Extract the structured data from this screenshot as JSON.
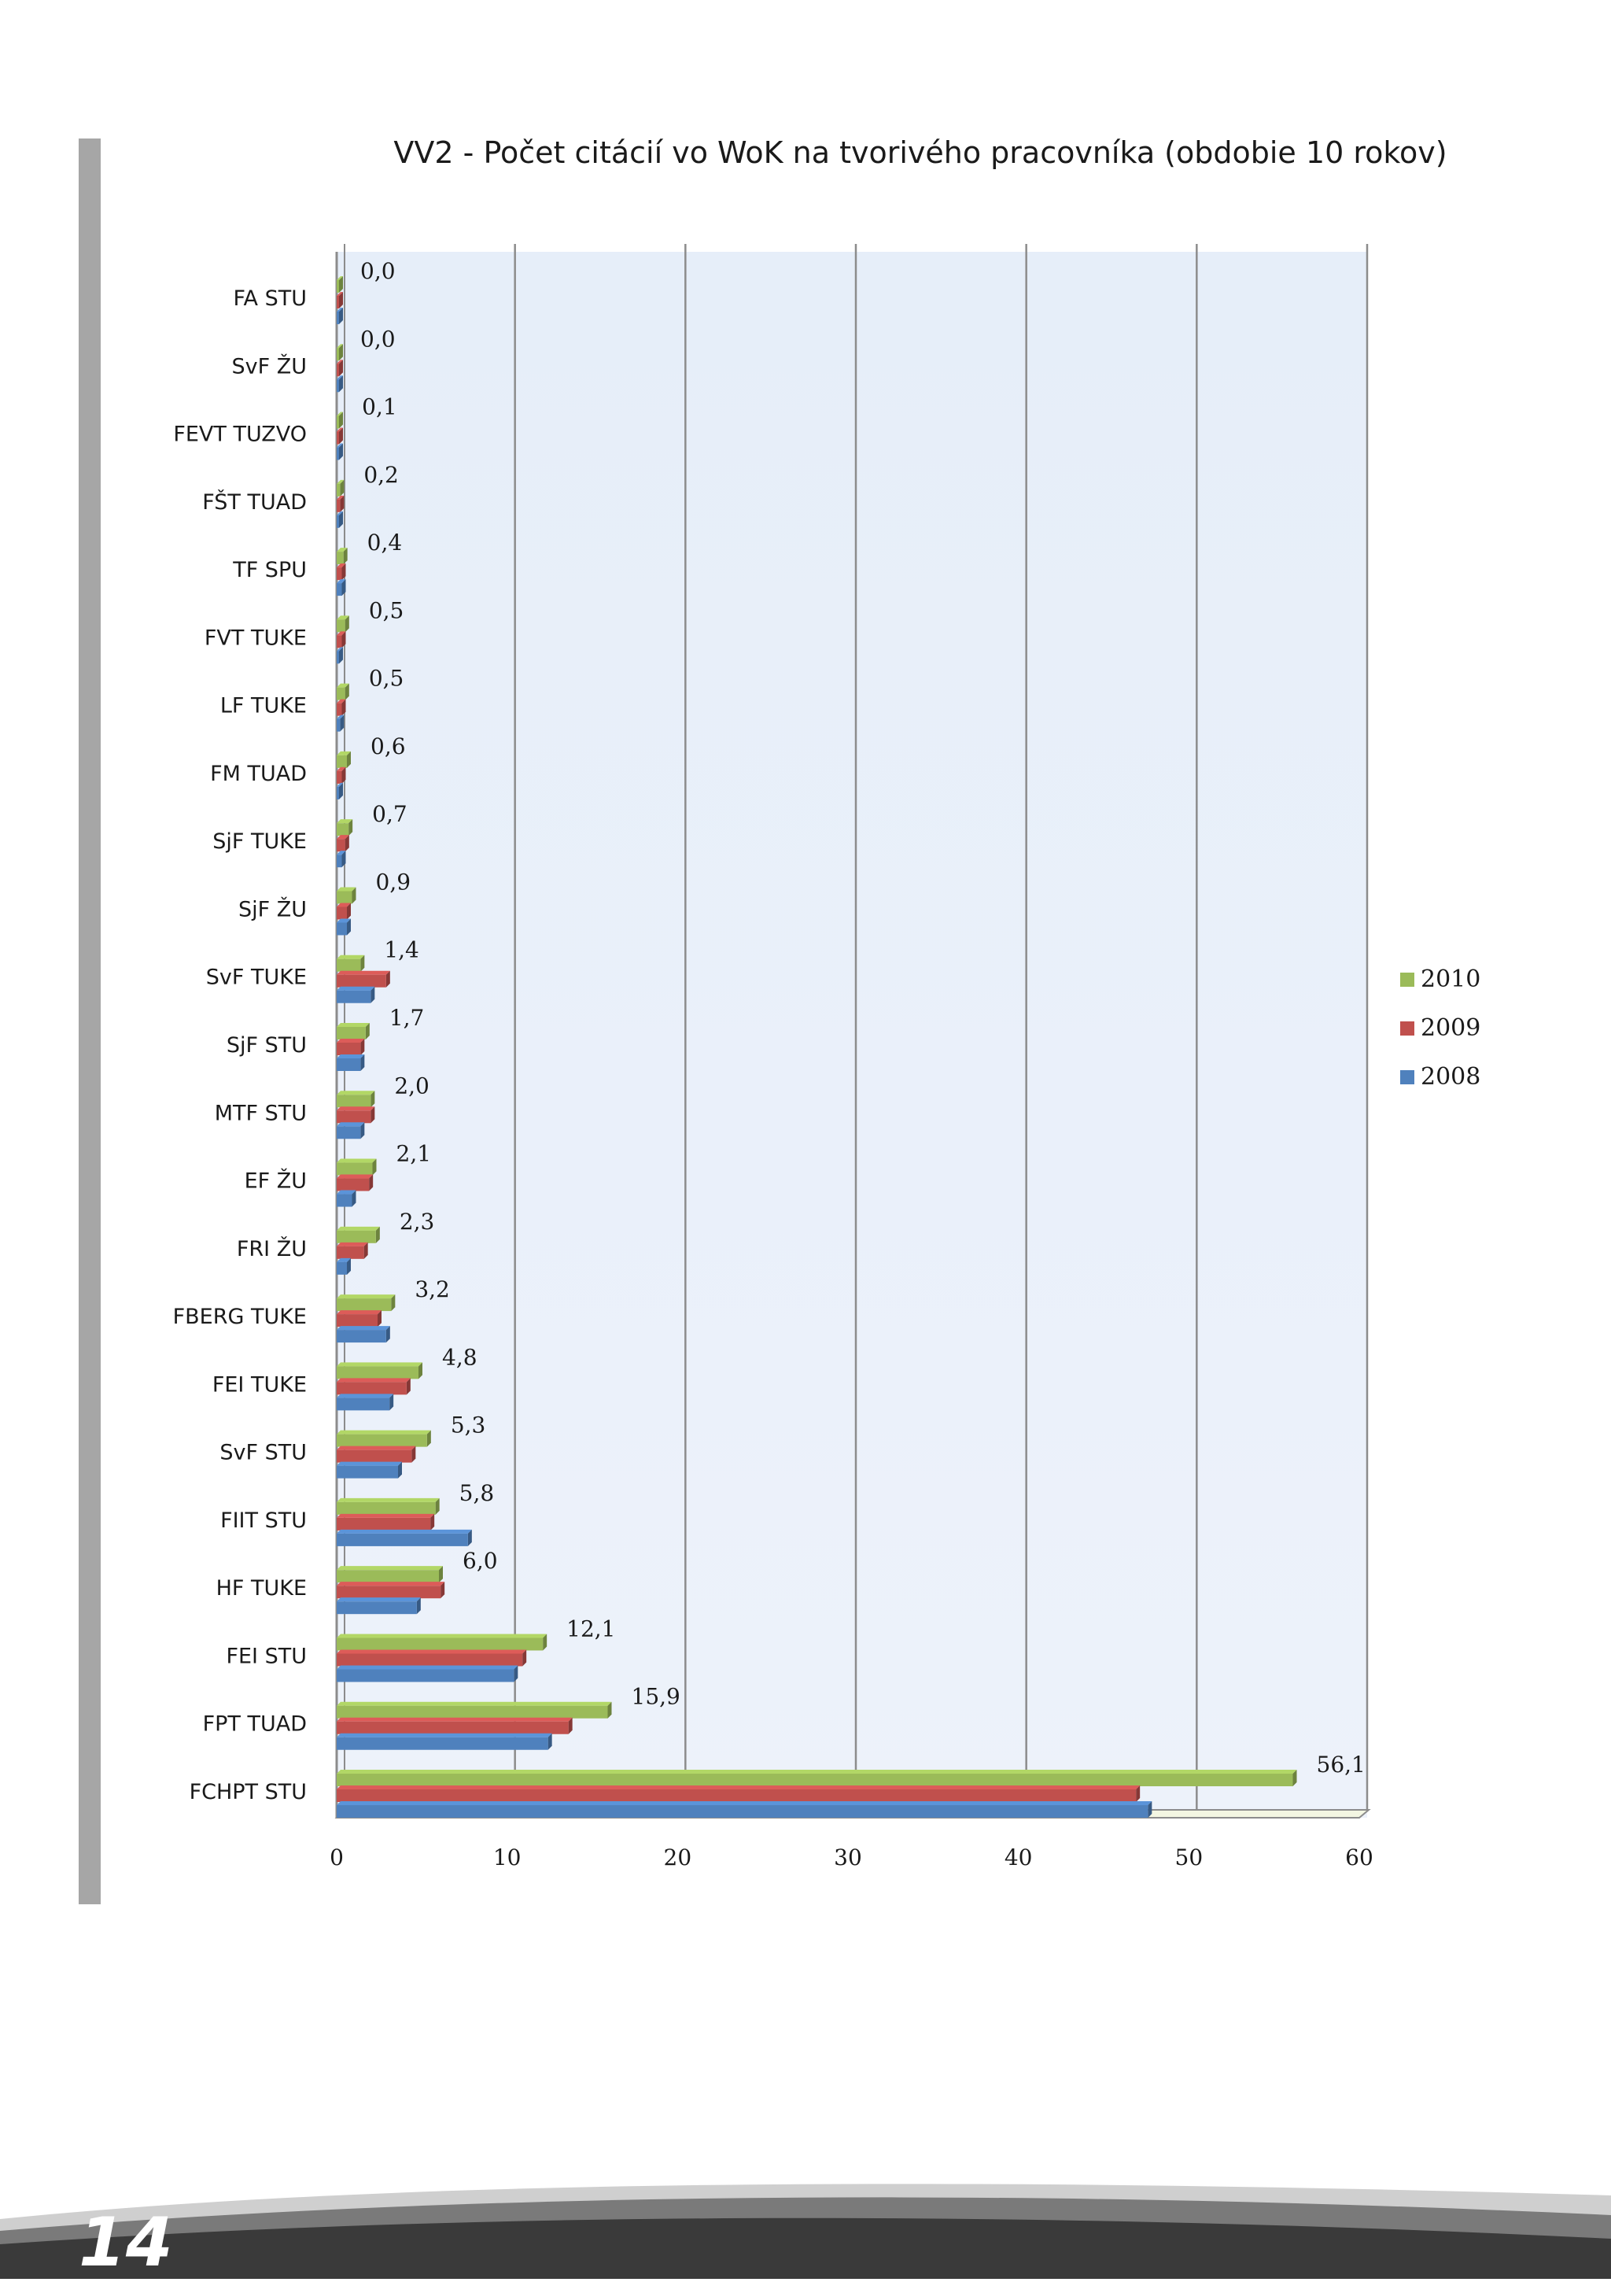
{
  "page": {
    "number": "14"
  },
  "chart_data": {
    "type": "bar",
    "orientation": "horizontal",
    "title": "VV2 - Počet citácií vo WoK na tvorivého pracovníka (obdobie 10 rokov)",
    "xlabel": "",
    "ylabel": "",
    "xlim": [
      0,
      60
    ],
    "xticks": [
      "0",
      "10",
      "20",
      "30",
      "40",
      "50",
      "60"
    ],
    "grid": true,
    "legend_position": "right",
    "categories": [
      "FA STU",
      "SvF ŽU",
      "FEVT TUZVO",
      "FŠT TUAD",
      "TF SPU",
      "FVT TUKE",
      "LF TUKE",
      "FM TUAD",
      "SjF TUKE",
      "SjF ŽU",
      "SvF TUKE",
      "SjF STU",
      "MTF STU",
      "EF ŽU",
      "FRI ŽU",
      "FBERG  TUKE",
      "FEI TUKE",
      "SvF STU",
      "FIIT STU",
      "HF TUKE",
      "FEI STU",
      "FPT TUAD",
      "FCHPT STU"
    ],
    "series": [
      {
        "name": "2010",
        "color": "#9bbb59",
        "values": [
          0.0,
          0.0,
          0.1,
          0.2,
          0.4,
          0.5,
          0.5,
          0.6,
          0.7,
          0.9,
          1.4,
          1.7,
          2.0,
          2.1,
          2.3,
          3.2,
          4.8,
          5.3,
          5.8,
          6.0,
          12.1,
          15.9,
          56.1
        ]
      },
      {
        "name": "2009",
        "color": "#c0504d",
        "values": [
          0.0,
          0.0,
          0.1,
          0.2,
          0.3,
          0.3,
          0.3,
          0.3,
          0.5,
          0.6,
          2.9,
          1.4,
          2.0,
          1.9,
          1.6,
          2.4,
          4.1,
          4.4,
          5.5,
          6.1,
          10.9,
          13.6,
          46.9
        ]
      },
      {
        "name": "2008",
        "color": "#4f81bd",
        "values": [
          0.0,
          0.0,
          0.0,
          0.1,
          0.3,
          0.1,
          0.2,
          0.1,
          0.3,
          0.6,
          2.0,
          1.4,
          1.4,
          0.9,
          0.6,
          2.9,
          3.1,
          3.6,
          7.7,
          4.7,
          10.4,
          12.4,
          47.6
        ]
      }
    ],
    "data_labels": [
      "0,0",
      "0,0",
      "0,1",
      "0,2",
      "0,4",
      "0,5",
      "0,5",
      "0,6",
      "0,7",
      "0,9",
      "1,4",
      "1,7",
      "2,0",
      "2,1",
      "2,3",
      "3,2",
      "4,8",
      "5,3",
      "5,8",
      "6,0",
      "12,1",
      "15,9",
      "56,1"
    ],
    "legend": [
      "2010",
      "2009",
      "2008"
    ]
  }
}
